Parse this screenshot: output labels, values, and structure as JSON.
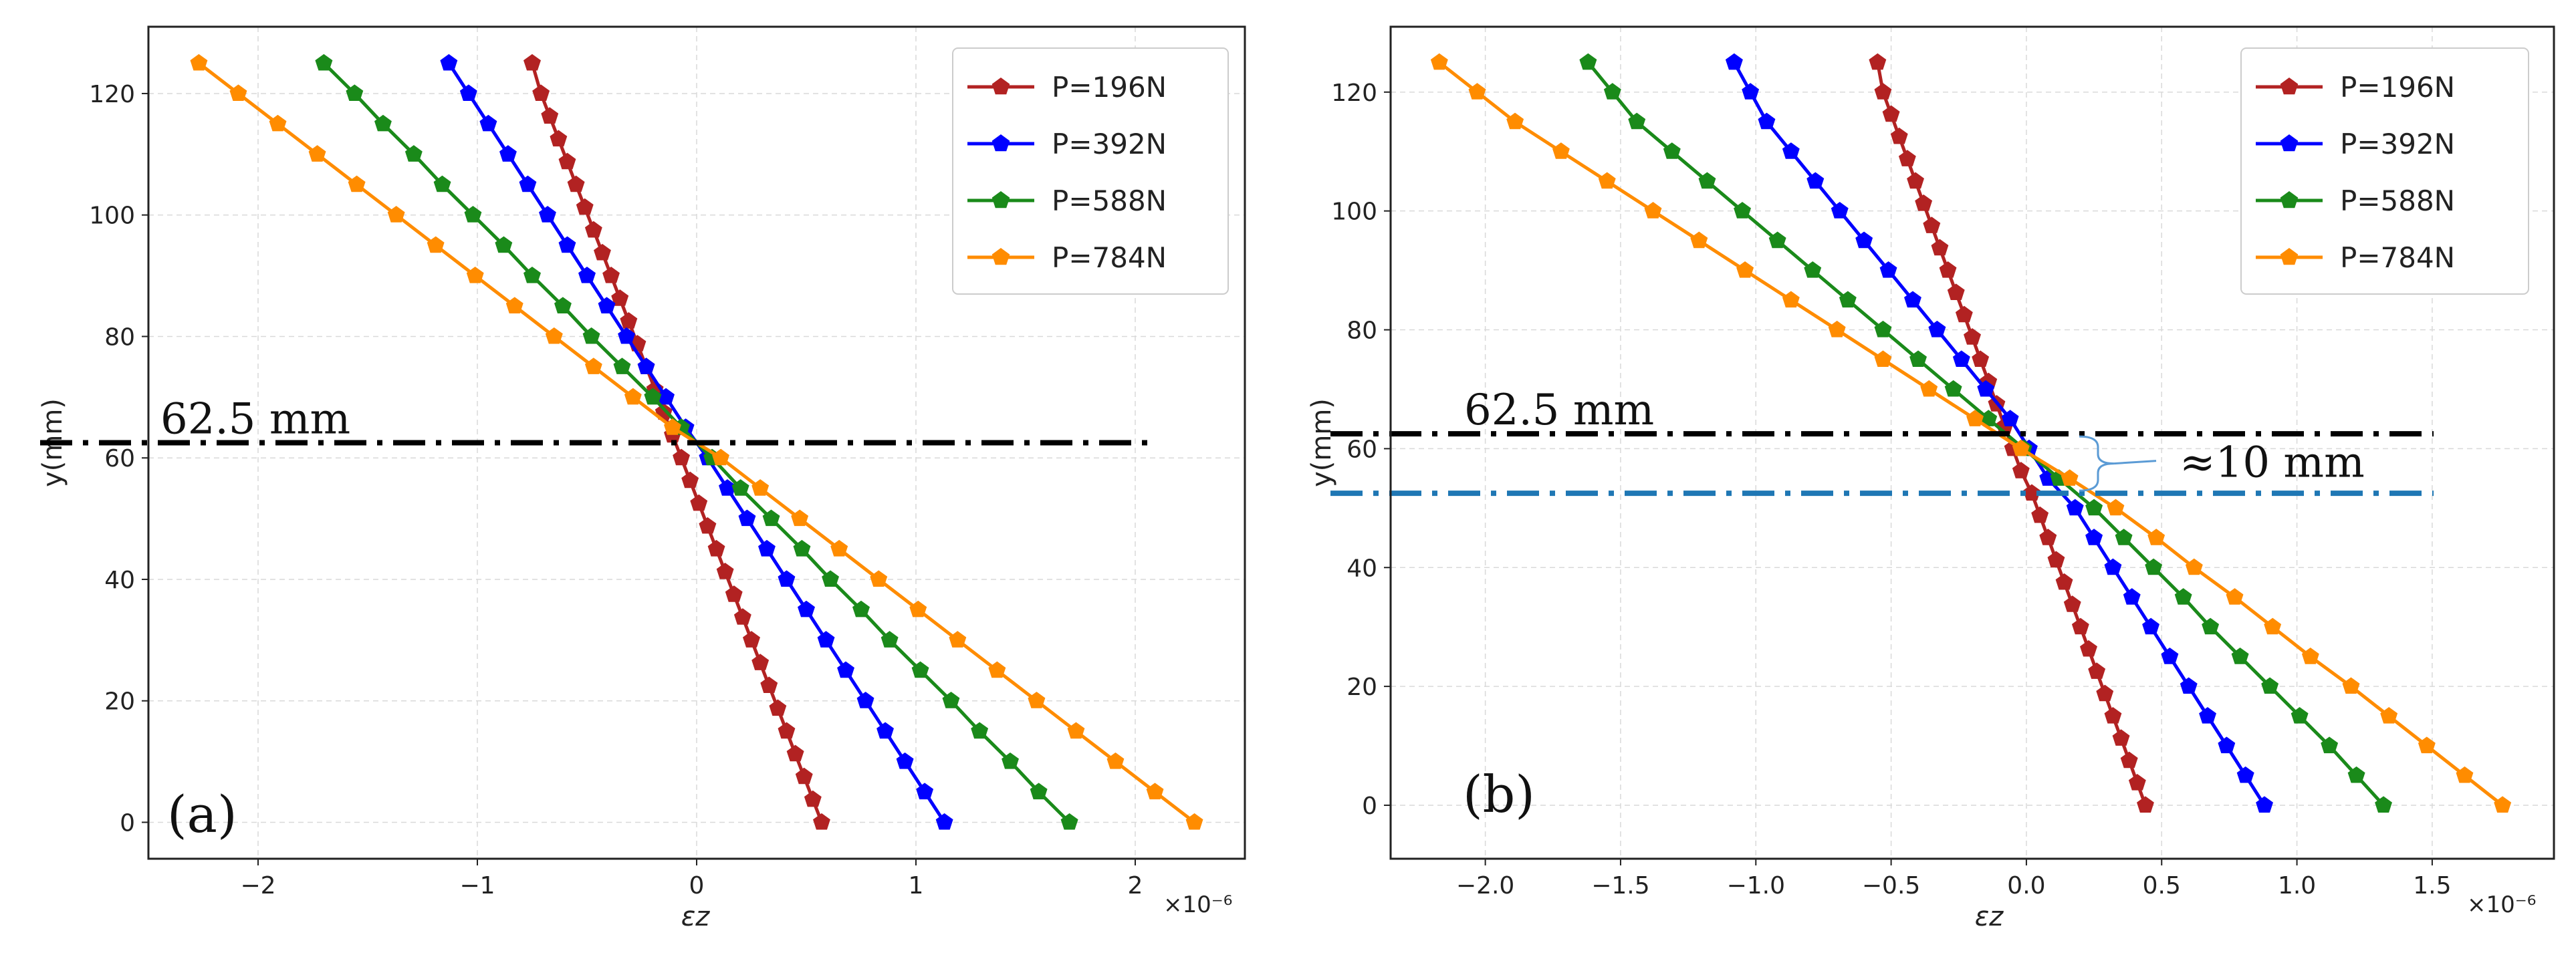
{
  "colors": {
    "P=196N": "#b22222",
    "P=392N": "#0000ff",
    "P=588N": "#1a8a1a",
    "P=784N": "#ff8c00",
    "neutral_line": "#000000",
    "shift_line": "#1f77b4",
    "brace": "#5b9bd5"
  },
  "chart_data": [
    {
      "type": "line",
      "panel": "(a)",
      "xlabel": "εz",
      "x_multiplier": "×10⁻⁶",
      "ylabel": "y(mm)",
      "xlim": [
        -2.5,
        2.5
      ],
      "ylim": [
        -6,
        131
      ],
      "xticks": [
        -2,
        -1,
        0,
        1,
        2
      ],
      "xtick_labels": [
        "−2",
        "−1",
        "0",
        "1",
        "2"
      ],
      "yticks": [
        0,
        20,
        40,
        60,
        80,
        100,
        120
      ],
      "ytick_labels": [
        "0",
        "20",
        "40",
        "60",
        "80",
        "100",
        "120"
      ],
      "grid": true,
      "legend_position": "top-right",
      "neutral_axis_mm": 62.5,
      "annotations": [
        {
          "text": "62.5 mm"
        }
      ],
      "y": [
        0,
        2.5,
        5,
        7.5,
        10,
        12.5,
        15,
        17.5,
        20,
        22.5,
        25,
        27.5,
        30,
        32.5,
        35,
        37.5,
        40,
        42.5,
        45,
        47.5,
        50,
        52.5,
        55,
        57.5,
        60,
        62.5,
        65,
        67.5,
        70,
        72.5,
        75,
        77.5,
        80,
        82.5,
        85,
        87.5,
        90,
        92.5,
        95,
        97.5,
        100,
        102.5,
        105,
        107.5,
        110,
        112.5,
        115,
        117.5,
        120,
        122.5,
        125
      ],
      "series": [
        {
          "name": "P=196N",
          "points": [
            [
              0.57,
              0
            ],
            [
              0.53,
              3.75
            ],
            [
              0.49,
              7.5
            ],
            [
              0.45,
              11.25
            ],
            [
              0.41,
              15
            ],
            [
              0.37,
              18.75
            ],
            [
              0.33,
              22.5
            ],
            [
              0.29,
              26.25
            ],
            [
              0.25,
              30
            ],
            [
              0.21,
              33.75
            ],
            [
              0.17,
              37.5
            ],
            [
              0.13,
              41.25
            ],
            [
              0.09,
              45
            ],
            [
              0.05,
              48.75
            ],
            [
              0.01,
              52.5
            ],
            [
              -0.03,
              56.25
            ],
            [
              -0.07,
              60
            ],
            [
              -0.11,
              63.75
            ],
            [
              -0.15,
              67.5
            ],
            [
              -0.19,
              71.25
            ],
            [
              -0.23,
              75
            ],
            [
              -0.27,
              78.75
            ],
            [
              -0.31,
              82.5
            ],
            [
              -0.35,
              86.25
            ],
            [
              -0.39,
              90
            ],
            [
              -0.43,
              93.75
            ],
            [
              -0.47,
              97.5
            ],
            [
              -0.51,
              101.25
            ],
            [
              -0.55,
              105
            ],
            [
              -0.59,
              108.75
            ],
            [
              -0.63,
              112.5
            ],
            [
              -0.67,
              116.25
            ],
            [
              -0.71,
              120
            ],
            [
              -0.75,
              125
            ]
          ]
        },
        {
          "name": "P=392N",
          "points": [
            [
              1.13,
              0
            ],
            [
              1.04,
              5
            ],
            [
              0.95,
              10
            ],
            [
              0.86,
              15
            ],
            [
              0.77,
              20
            ],
            [
              0.68,
              25
            ],
            [
              0.59,
              30
            ],
            [
              0.5,
              35
            ],
            [
              0.41,
              40
            ],
            [
              0.32,
              45
            ],
            [
              0.23,
              50
            ],
            [
              0.14,
              55
            ],
            [
              0.05,
              60
            ],
            [
              -0.05,
              65
            ],
            [
              -0.14,
              70
            ],
            [
              -0.23,
              75
            ],
            [
              -0.32,
              80
            ],
            [
              -0.41,
              85
            ],
            [
              -0.5,
              90
            ],
            [
              -0.59,
              95
            ],
            [
              -0.68,
              100
            ],
            [
              -0.77,
              105
            ],
            [
              -0.86,
              110
            ],
            [
              -0.95,
              115
            ],
            [
              -1.04,
              120
            ],
            [
              -1.13,
              125
            ]
          ]
        },
        {
          "name": "P=588N",
          "points": [
            [
              1.7,
              0
            ],
            [
              1.56,
              5
            ],
            [
              1.43,
              10
            ],
            [
              1.29,
              15
            ],
            [
              1.16,
              20
            ],
            [
              1.02,
              25
            ],
            [
              0.88,
              30
            ],
            [
              0.75,
              35
            ],
            [
              0.61,
              40
            ],
            [
              0.48,
              45
            ],
            [
              0.34,
              50
            ],
            [
              0.2,
              55
            ],
            [
              0.07,
              60
            ],
            [
              -0.07,
              65
            ],
            [
              -0.2,
              70
            ],
            [
              -0.34,
              75
            ],
            [
              -0.48,
              80
            ],
            [
              -0.61,
              85
            ],
            [
              -0.75,
              90
            ],
            [
              -0.88,
              95
            ],
            [
              -1.02,
              100
            ],
            [
              -1.16,
              105
            ],
            [
              -1.29,
              110
            ],
            [
              -1.43,
              115
            ],
            [
              -1.56,
              120
            ],
            [
              -1.7,
              125
            ]
          ]
        },
        {
          "name": "P=784N",
          "points": [
            [
              2.27,
              0
            ],
            [
              2.09,
              5
            ],
            [
              1.91,
              10
            ],
            [
              1.73,
              15
            ],
            [
              1.55,
              20
            ],
            [
              1.37,
              25
            ],
            [
              1.19,
              30
            ],
            [
              1.01,
              35
            ],
            [
              0.83,
              40
            ],
            [
              0.65,
              45
            ],
            [
              0.47,
              50
            ],
            [
              0.29,
              55
            ],
            [
              0.11,
              60
            ],
            [
              -0.11,
              65
            ],
            [
              -0.29,
              70
            ],
            [
              -0.47,
              75
            ],
            [
              -0.65,
              80
            ],
            [
              -0.83,
              85
            ],
            [
              -1.01,
              90
            ],
            [
              -1.19,
              95
            ],
            [
              -1.37,
              100
            ],
            [
              -1.55,
              105
            ],
            [
              -1.73,
              110
            ],
            [
              -1.91,
              115
            ],
            [
              -2.09,
              120
            ],
            [
              -2.27,
              125
            ]
          ]
        }
      ]
    },
    {
      "type": "line",
      "panel": "(b)",
      "xlabel": "εz",
      "x_multiplier": "×10⁻⁶",
      "ylabel": "y(mm)",
      "xlim": [
        -2.35,
        1.95
      ],
      "ylim": [
        -9,
        131
      ],
      "xticks": [
        -2.0,
        -1.5,
        -1.0,
        -0.5,
        0.0,
        0.5,
        1.0,
        1.5
      ],
      "xtick_labels": [
        "−2.0",
        "−1.5",
        "−1.0",
        "−0.5",
        "0.0",
        "0.5",
        "1.0",
        "1.5"
      ],
      "yticks": [
        0,
        20,
        40,
        60,
        80,
        100,
        120
      ],
      "ytick_labels": [
        "0",
        "20",
        "40",
        "60",
        "80",
        "100",
        "120"
      ],
      "grid": true,
      "legend_position": "top-right",
      "neutral_axis_mm": 62.5,
      "shifted_axis_mm": 52.5,
      "annotations": [
        {
          "text": "62.5 mm"
        },
        {
          "text": "≈10 mm"
        }
      ],
      "series": [
        {
          "name": "P=196N",
          "points": [
            [
              0.44,
              0
            ],
            [
              0.41,
              3.75
            ],
            [
              0.38,
              7.5
            ],
            [
              0.35,
              11.25
            ],
            [
              0.32,
              15
            ],
            [
              0.29,
              18.75
            ],
            [
              0.26,
              22.5
            ],
            [
              0.23,
              26.25
            ],
            [
              0.2,
              30
            ],
            [
              0.17,
              33.75
            ],
            [
              0.14,
              37.5
            ],
            [
              0.11,
              41.25
            ],
            [
              0.08,
              45
            ],
            [
              0.05,
              48.75
            ],
            [
              0.02,
              52.5
            ],
            [
              -0.02,
              56.25
            ],
            [
              -0.05,
              60
            ],
            [
              -0.08,
              63.75
            ],
            [
              -0.11,
              67.5
            ],
            [
              -0.14,
              71.25
            ],
            [
              -0.17,
              75
            ],
            [
              -0.2,
              78.75
            ],
            [
              -0.23,
              82.5
            ],
            [
              -0.26,
              86.25
            ],
            [
              -0.29,
              90
            ],
            [
              -0.32,
              93.75
            ],
            [
              -0.35,
              97.5
            ],
            [
              -0.38,
              101.25
            ],
            [
              -0.41,
              105
            ],
            [
              -0.44,
              108.75
            ],
            [
              -0.47,
              112.5
            ],
            [
              -0.5,
              116.25
            ],
            [
              -0.53,
              120
            ],
            [
              -0.55,
              125
            ]
          ]
        },
        {
          "name": "P=392N",
          "points": [
            [
              0.88,
              0
            ],
            [
              0.81,
              5
            ],
            [
              0.74,
              10
            ],
            [
              0.67,
              15
            ],
            [
              0.6,
              20
            ],
            [
              0.53,
              25
            ],
            [
              0.46,
              30
            ],
            [
              0.39,
              35
            ],
            [
              0.32,
              40
            ],
            [
              0.25,
              45
            ],
            [
              0.18,
              50
            ],
            [
              0.08,
              55
            ],
            [
              0.01,
              60
            ],
            [
              -0.06,
              65
            ],
            [
              -0.15,
              70
            ],
            [
              -0.24,
              75
            ],
            [
              -0.33,
              80
            ],
            [
              -0.42,
              85
            ],
            [
              -0.51,
              90
            ],
            [
              -0.6,
              95
            ],
            [
              -0.69,
              100
            ],
            [
              -0.78,
              105
            ],
            [
              -0.87,
              110
            ],
            [
              -0.96,
              115
            ],
            [
              -1.02,
              120
            ],
            [
              -1.08,
              125
            ]
          ]
        },
        {
          "name": "P=588N",
          "points": [
            [
              1.32,
              0
            ],
            [
              1.22,
              5
            ],
            [
              1.12,
              10
            ],
            [
              1.01,
              15
            ],
            [
              0.9,
              20
            ],
            [
              0.79,
              25
            ],
            [
              0.68,
              30
            ],
            [
              0.58,
              35
            ],
            [
              0.47,
              40
            ],
            [
              0.36,
              45
            ],
            [
              0.25,
              50
            ],
            [
              0.12,
              55
            ],
            [
              -0.01,
              60
            ],
            [
              -0.14,
              65
            ],
            [
              -0.27,
              70
            ],
            [
              -0.4,
              75
            ],
            [
              -0.53,
              80
            ],
            [
              -0.66,
              85
            ],
            [
              -0.79,
              90
            ],
            [
              -0.92,
              95
            ],
            [
              -1.05,
              100
            ],
            [
              -1.18,
              105
            ],
            [
              -1.31,
              110
            ],
            [
              -1.44,
              115
            ],
            [
              -1.53,
              120
            ],
            [
              -1.62,
              125
            ]
          ]
        },
        {
          "name": "P=784N",
          "points": [
            [
              1.76,
              0
            ],
            [
              1.62,
              5
            ],
            [
              1.48,
              10
            ],
            [
              1.34,
              15
            ],
            [
              1.2,
              20
            ],
            [
              1.05,
              25
            ],
            [
              0.91,
              30
            ],
            [
              0.77,
              35
            ],
            [
              0.62,
              40
            ],
            [
              0.48,
              45
            ],
            [
              0.33,
              50
            ],
            [
              0.16,
              55
            ],
            [
              -0.02,
              60
            ],
            [
              -0.19,
              65
            ],
            [
              -0.36,
              70
            ],
            [
              -0.53,
              75
            ],
            [
              -0.7,
              80
            ],
            [
              -0.87,
              85
            ],
            [
              -1.04,
              90
            ],
            [
              -1.21,
              95
            ],
            [
              -1.38,
              100
            ],
            [
              -1.55,
              105
            ],
            [
              -1.72,
              110
            ],
            [
              -1.89,
              115
            ],
            [
              -2.03,
              120
            ],
            [
              -2.17,
              125
            ]
          ]
        }
      ]
    }
  ]
}
